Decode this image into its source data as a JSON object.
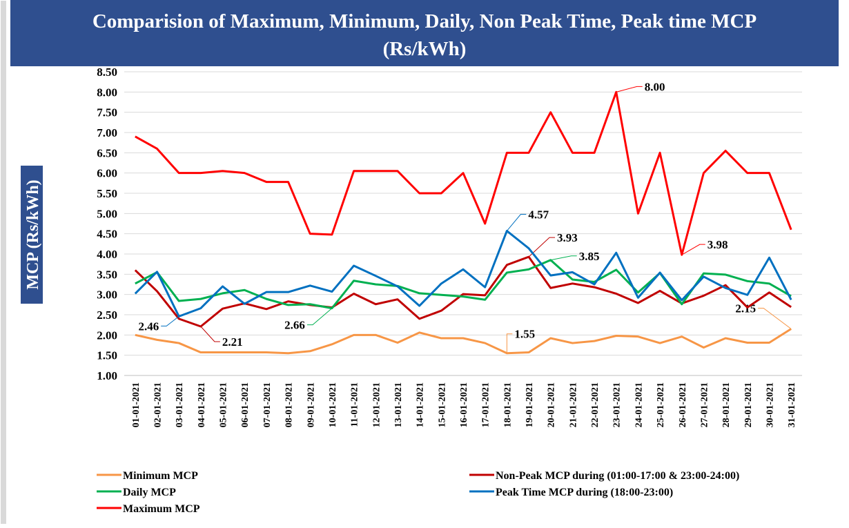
{
  "chart_data": {
    "type": "line",
    "title": "Comparision of Maximum, Minimum, Daily, Non Peak Time, Peak time MCP",
    "subtitle": "(Rs/kWh)",
    "ylabel": "MCP (Rs/kWh)",
    "categories": [
      "01-01-2021",
      "02-01-2021",
      "03-01-2021",
      "04-01-2021",
      "05-01-2021",
      "06-01-2021",
      "07-01-2021",
      "08-01-2021",
      "09-01-2021",
      "10-01-2021",
      "11-01-2021",
      "12-01-2021",
      "13-01-2021",
      "14-01-2021",
      "15-01-2021",
      "16-01-2021",
      "17-01-2021",
      "18-01-2021",
      "19-01-2021",
      "20-01-2021",
      "21-01-2021",
      "22-01-2021",
      "23-01-2021",
      "24-01-2021",
      "25-01-2021",
      "26-01-2021",
      "27-01-2021",
      "28-01-2021",
      "29-01-2021",
      "30-01-2021",
      "31-01-2021"
    ],
    "series": [
      {
        "name": "Minimum MCP",
        "color": "#f79646",
        "values": [
          2.0,
          1.88,
          1.8,
          1.57,
          1.57,
          1.57,
          1.57,
          1.55,
          1.6,
          1.77,
          2.0,
          2.0,
          1.81,
          2.06,
          1.92,
          1.92,
          1.8,
          1.55,
          1.57,
          1.92,
          1.8,
          1.85,
          1.98,
          1.96,
          1.8,
          1.96,
          1.69,
          1.92,
          1.81,
          1.81,
          2.15
        ],
        "value_labels": [
          null,
          null,
          null,
          null,
          null,
          null,
          null,
          null,
          null,
          null,
          null,
          null,
          null,
          null,
          null,
          null,
          null,
          "1.55",
          null,
          null,
          null,
          null,
          null,
          null,
          null,
          null,
          null,
          null,
          null,
          null,
          "2.15"
        ]
      },
      {
        "name": "Non-Peak MCP  during (01:00-17:00 & 23:00-24:00)",
        "color": "#c00000",
        "values": [
          3.6,
          3.08,
          2.4,
          2.21,
          2.65,
          2.78,
          2.64,
          2.83,
          2.74,
          2.68,
          3.02,
          2.76,
          2.88,
          2.4,
          2.6,
          3.01,
          2.98,
          3.73,
          3.93,
          3.16,
          3.27,
          3.18,
          3.02,
          2.79,
          3.09,
          2.78,
          2.97,
          3.23,
          2.68,
          3.05,
          2.69
        ],
        "value_labels": [
          null,
          null,
          null,
          "2.21",
          null,
          null,
          null,
          null,
          null,
          null,
          null,
          null,
          null,
          null,
          null,
          null,
          null,
          null,
          "3.93",
          null,
          null,
          null,
          null,
          null,
          null,
          null,
          null,
          null,
          null,
          null,
          null
        ]
      },
      {
        "name": "Daily MCP",
        "color": "#00b050",
        "values": [
          3.27,
          3.55,
          2.84,
          2.89,
          3.03,
          3.11,
          2.89,
          2.74,
          2.76,
          2.66,
          3.34,
          3.25,
          3.21,
          3.03,
          2.99,
          2.95,
          2.87,
          3.54,
          3.62,
          3.85,
          3.37,
          3.31,
          3.61,
          3.05,
          3.53,
          2.76,
          3.52,
          3.49,
          3.33,
          3.27,
          2.96
        ],
        "value_labels": [
          null,
          null,
          null,
          null,
          null,
          null,
          null,
          null,
          null,
          "2.66",
          null,
          null,
          null,
          null,
          null,
          null,
          null,
          null,
          null,
          "3.85",
          null,
          null,
          null,
          null,
          null,
          null,
          null,
          null,
          null,
          null,
          null
        ]
      },
      {
        "name": "Peak Time MCP  during (18:00-23:00)",
        "color": "#0070c0",
        "values": [
          3.02,
          3.56,
          2.46,
          2.66,
          3.2,
          2.77,
          3.06,
          3.06,
          3.22,
          3.07,
          3.71,
          3.46,
          3.2,
          2.72,
          3.27,
          3.62,
          3.18,
          4.57,
          4.14,
          3.47,
          3.55,
          3.25,
          4.03,
          2.92,
          3.54,
          2.86,
          3.44,
          3.16,
          2.99,
          3.91,
          2.87
        ],
        "value_labels": [
          null,
          null,
          "2.46",
          null,
          null,
          null,
          null,
          null,
          null,
          null,
          null,
          null,
          null,
          null,
          null,
          null,
          null,
          "4.57",
          null,
          null,
          null,
          null,
          null,
          null,
          null,
          null,
          null,
          null,
          null,
          null,
          null
        ]
      },
      {
        "name": "Maximum MCP",
        "color": "#ff0000",
        "values": [
          6.9,
          6.6,
          6.0,
          6.0,
          6.05,
          6.0,
          5.78,
          5.78,
          4.5,
          4.48,
          6.05,
          6.05,
          6.05,
          5.5,
          5.5,
          6.0,
          4.75,
          6.5,
          6.5,
          7.5,
          6.5,
          6.5,
          8.0,
          5.0,
          6.5,
          3.98,
          6.0,
          6.55,
          6.0,
          6.0,
          4.6
        ],
        "value_labels": [
          null,
          null,
          null,
          null,
          null,
          null,
          null,
          null,
          null,
          null,
          null,
          null,
          null,
          null,
          null,
          null,
          null,
          null,
          null,
          null,
          null,
          null,
          "8.00",
          null,
          null,
          "3.98",
          null,
          null,
          null,
          null,
          null
        ]
      }
    ],
    "ylim": [
      1,
      8.5
    ],
    "yticks": [
      {
        "value": 1,
        "label": "1.00"
      },
      {
        "value": 1.5,
        "label": "1.50"
      },
      {
        "value": 2,
        "label": "2.00"
      },
      {
        "value": 2.5,
        "label": "2.50"
      },
      {
        "value": 3,
        "label": "3.00"
      },
      {
        "value": 3.5,
        "label": "3.50"
      },
      {
        "value": 4,
        "label": "4.00"
      },
      {
        "value": 4.5,
        "label": "4.50"
      },
      {
        "value": 5,
        "label": "5.00"
      },
      {
        "value": 5.5,
        "label": "5.50"
      },
      {
        "value": 6,
        "label": "6.00"
      },
      {
        "value": 6.5,
        "label": "6.50"
      },
      {
        "value": 7,
        "label": "7.00"
      },
      {
        "value": 7.5,
        "label": "7.50"
      },
      {
        "value": 8,
        "label": "8.00"
      },
      {
        "value": 8.5,
        "label": "8.50"
      }
    ],
    "grid": true,
    "legend": "bottom"
  }
}
